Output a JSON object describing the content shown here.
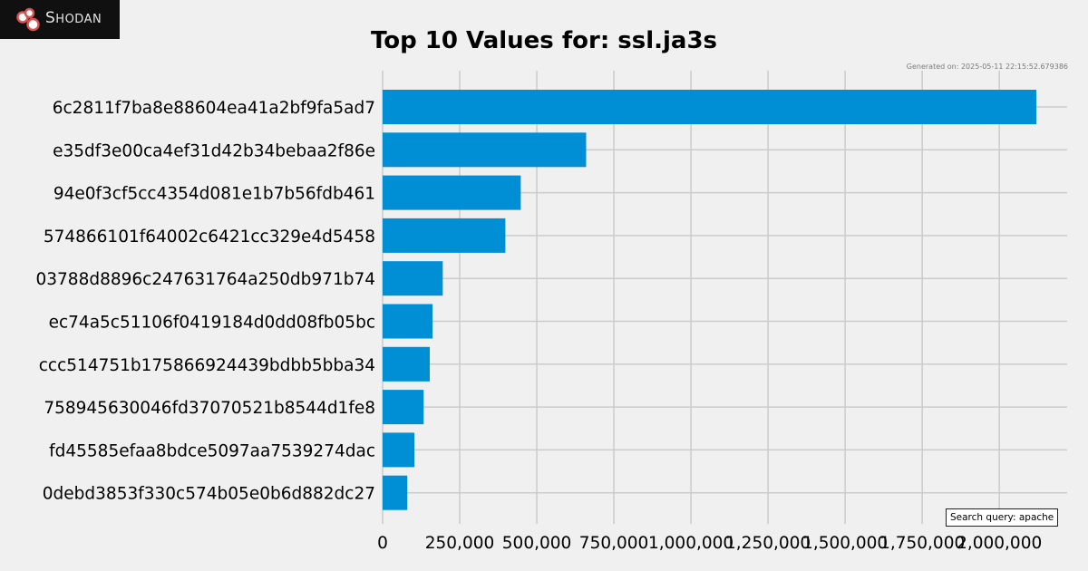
{
  "brand": {
    "name": "Shodan",
    "name_first": "S",
    "name_rest": "HODAN",
    "background_color": "#101010",
    "icon_color": "#e05050"
  },
  "generated_text": "Generated on: 2025-05-11 22:15:52.679386",
  "search_query": {
    "label": "Search query:",
    "value": "apache"
  },
  "colors": {
    "background": "#f0f0f0",
    "bar": "#008fd5",
    "grid": "#cbcbcb",
    "text": "#000000"
  },
  "chart_data": {
    "type": "bar",
    "orientation": "horizontal",
    "title": "Top 10 Values for: ssl.ja3s",
    "xlabel": "",
    "ylabel": "",
    "categories": [
      "6c2811f7ba8e88604ea41a2bf9fa5ad7",
      "e35df3e00ca4ef31d42b34bebaa2f86e",
      "94e0f3cf5cc4354d081e1b7b56fdb461",
      "574866101f64002c6421cc329e4d5458",
      "03788d8896c247631764a250db971b74",
      "ec74a5c51106f0419184d0dd08fb05bc",
      "ccc514751b175866924439bdbb5bba34",
      "758945630046fd37070521b8544d1fe8",
      "fd45585efaa8bdce5097aa7539274dac",
      "0debd3853f330c574b05e0b6d882dc27"
    ],
    "values": [
      2120000,
      660000,
      448000,
      398000,
      195000,
      162000,
      153000,
      133000,
      103000,
      80000
    ],
    "xlim": [
      0,
      2220000
    ],
    "x_ticks": [
      0,
      250000,
      500000,
      750000,
      1000000,
      1250000,
      1500000,
      1750000,
      2000000
    ],
    "x_tick_labels": [
      "0",
      "250,000",
      "500,000",
      "750,000",
      "1,000,000",
      "1,250,000",
      "1,500,000",
      "1,750,000",
      "2,000,000"
    ],
    "grid": true
  }
}
